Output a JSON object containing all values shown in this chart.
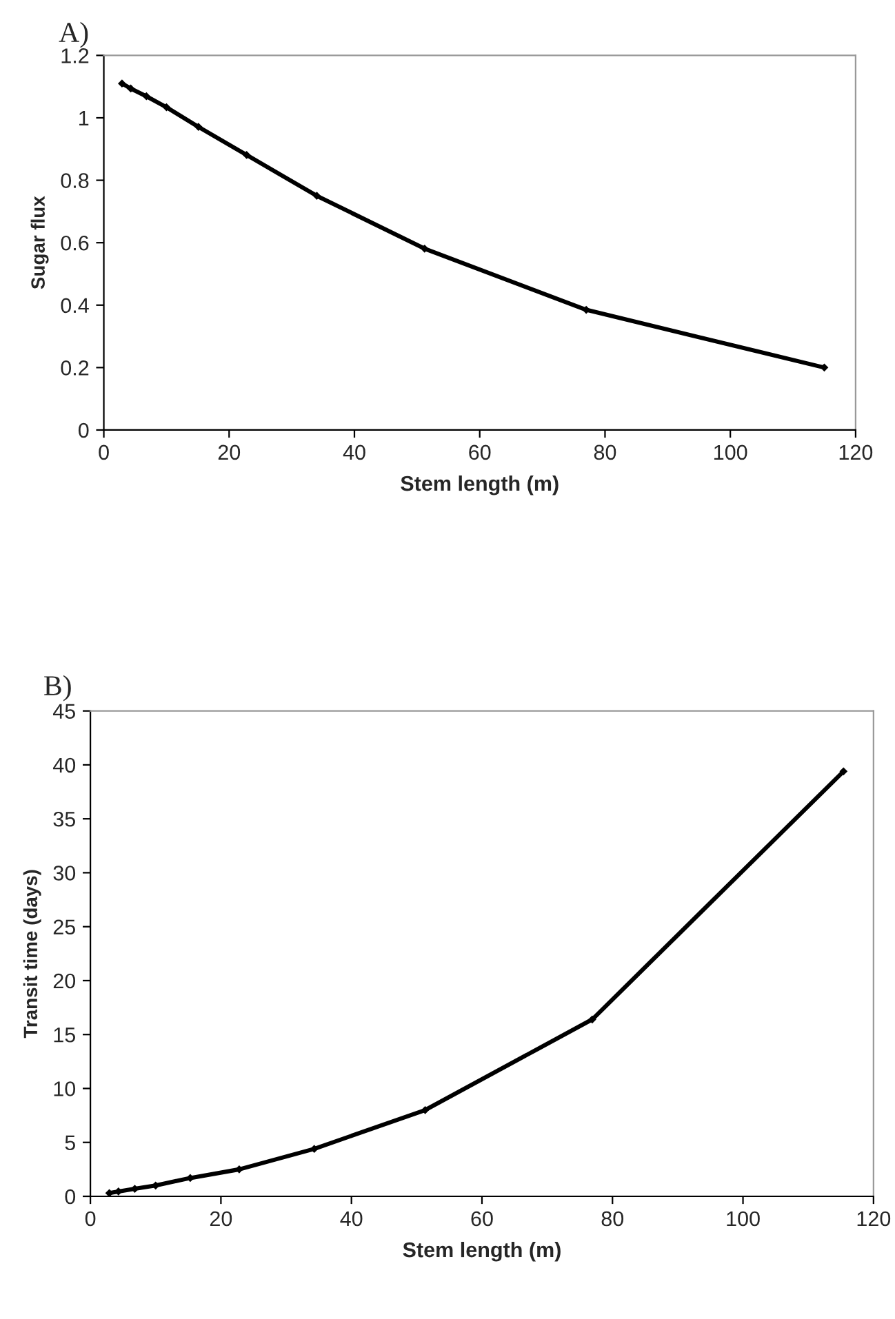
{
  "chart_data": [
    {
      "type": "line",
      "title": "A)",
      "xlabel": "Stem length (m)",
      "ylabel": "Sugar flux",
      "x": [
        2.9,
        4.3,
        6.8,
        10,
        15.1,
        22.8,
        34,
        51.2,
        77,
        115
      ],
      "series": [
        {
          "color": "#000000",
          "values": [
            1.11,
            1.094,
            1.069,
            1.034,
            0.971,
            0.881,
            0.75,
            0.581,
            0.385,
            0.2
          ]
        }
      ],
      "xlim": [
        0,
        120
      ],
      "xticks": [
        0,
        20,
        40,
        60,
        80,
        100,
        120
      ],
      "ylim": [
        0,
        1.2
      ],
      "yticks": [
        0,
        0.2,
        0.4,
        0.6,
        0.8,
        1,
        1.2
      ],
      "grid": false,
      "marker": "diamond",
      "line_style": "solid"
    },
    {
      "type": "line",
      "title": "B)",
      "xlabel": "Stem length (m)",
      "ylabel": "Transit time (days)",
      "x": [
        2.9,
        4.3,
        6.8,
        10,
        15.3,
        22.8,
        34.3,
        51.3,
        76.9,
        115.4
      ],
      "series": [
        {
          "color": "#000000",
          "values": [
            0.3,
            0.45,
            0.7,
            1.0,
            1.7,
            2.5,
            4.4,
            8.0,
            16.4,
            39.4
          ]
        }
      ],
      "xlim": [
        0,
        120
      ],
      "xticks": [
        0,
        20,
        40,
        60,
        80,
        100,
        120
      ],
      "ylim": [
        0,
        45
      ],
      "yticks": [
        0,
        5,
        10,
        15,
        20,
        25,
        30,
        35,
        40,
        45
      ],
      "grid": false,
      "marker": "diamond",
      "line_style": "solid"
    }
  ]
}
